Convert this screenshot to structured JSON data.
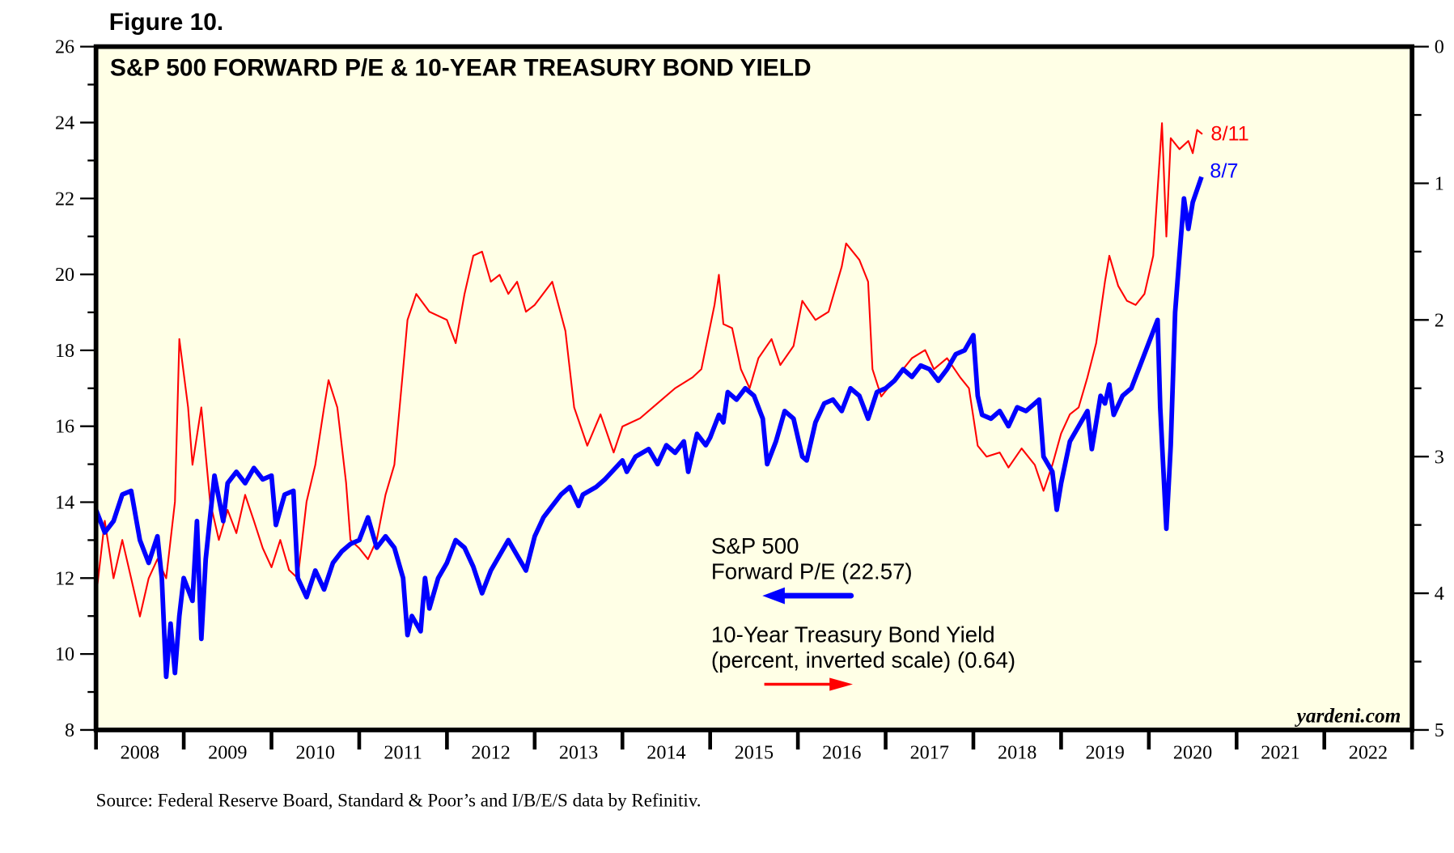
{
  "figure_label": "Figure 10.",
  "source": "Source: Federal Reserve Board, Standard & Poor’s and I/B/E/S data by Refinitiv.",
  "watermark": "yardeni.com",
  "colors": {
    "pe": "#0000ff",
    "yield": "#ff0000",
    "plot_bg": "#ffffe6",
    "frame": "#000000"
  },
  "chart_data": {
    "type": "line",
    "title": "S&P 500 FORWARD P/E & 10-YEAR TREASURY BOND YIELD",
    "xlabel": "",
    "x_tick_labels": [
      "2008",
      "2009",
      "2010",
      "2011",
      "2012",
      "2013",
      "2014",
      "2015",
      "2016",
      "2017",
      "2018",
      "2019",
      "2020",
      "2021",
      "2022"
    ],
    "xlim": [
      2008,
      2023
    ],
    "left_axis": {
      "ylim": [
        8,
        26
      ],
      "tick_labels": [
        "8",
        "10",
        "12",
        "14",
        "16",
        "18",
        "20",
        "22",
        "24",
        "26"
      ],
      "minor_step": 1
    },
    "right_axis": {
      "ylim": [
        5,
        0
      ],
      "inverted": true,
      "tick_labels": [
        "0",
        "1",
        "2",
        "3",
        "4",
        "5"
      ],
      "minor_step": 0.5
    },
    "legend": {
      "pe_line1": "S&P 500",
      "pe_line2": "Forward P/E (22.57)",
      "yield_line1": "10-Year Treasury Bond Yield",
      "yield_line2": "(percent, inverted scale) (0.64)"
    },
    "series": [
      {
        "name": "S&P 500 Forward P/E",
        "axis": "left",
        "end_label": "8/7",
        "points": [
          [
            2008.0,
            13.8
          ],
          [
            2008.1,
            13.2
          ],
          [
            2008.2,
            13.5
          ],
          [
            2008.3,
            14.2
          ],
          [
            2008.4,
            14.3
          ],
          [
            2008.5,
            13.0
          ],
          [
            2008.6,
            12.4
          ],
          [
            2008.7,
            13.1
          ],
          [
            2008.75,
            12.0
          ],
          [
            2008.8,
            9.4
          ],
          [
            2008.85,
            10.8
          ],
          [
            2008.9,
            9.5
          ],
          [
            2008.95,
            11.0
          ],
          [
            2009.0,
            12.0
          ],
          [
            2009.1,
            11.4
          ],
          [
            2009.15,
            13.5
          ],
          [
            2009.2,
            10.4
          ],
          [
            2009.25,
            12.5
          ],
          [
            2009.35,
            14.7
          ],
          [
            2009.45,
            13.5
          ],
          [
            2009.5,
            14.5
          ],
          [
            2009.6,
            14.8
          ],
          [
            2009.7,
            14.5
          ],
          [
            2009.8,
            14.9
          ],
          [
            2009.9,
            14.6
          ],
          [
            2010.0,
            14.7
          ],
          [
            2010.05,
            13.4
          ],
          [
            2010.15,
            14.2
          ],
          [
            2010.25,
            14.3
          ],
          [
            2010.3,
            12.0
          ],
          [
            2010.4,
            11.5
          ],
          [
            2010.5,
            12.2
          ],
          [
            2010.6,
            11.7
          ],
          [
            2010.7,
            12.4
          ],
          [
            2010.8,
            12.7
          ],
          [
            2010.9,
            12.9
          ],
          [
            2011.0,
            13.0
          ],
          [
            2011.1,
            13.6
          ],
          [
            2011.2,
            12.8
          ],
          [
            2011.3,
            13.1
          ],
          [
            2011.4,
            12.8
          ],
          [
            2011.5,
            12.0
          ],
          [
            2011.55,
            10.5
          ],
          [
            2011.6,
            11.0
          ],
          [
            2011.7,
            10.6
          ],
          [
            2011.75,
            12.0
          ],
          [
            2011.8,
            11.2
          ],
          [
            2011.9,
            12.0
          ],
          [
            2012.0,
            12.4
          ],
          [
            2012.1,
            13.0
          ],
          [
            2012.2,
            12.8
          ],
          [
            2012.3,
            12.3
          ],
          [
            2012.4,
            11.6
          ],
          [
            2012.5,
            12.2
          ],
          [
            2012.6,
            12.6
          ],
          [
            2012.7,
            13.0
          ],
          [
            2012.8,
            12.6
          ],
          [
            2012.9,
            12.2
          ],
          [
            2013.0,
            13.1
          ],
          [
            2013.1,
            13.6
          ],
          [
            2013.2,
            13.9
          ],
          [
            2013.3,
            14.2
          ],
          [
            2013.4,
            14.4
          ],
          [
            2013.5,
            13.9
          ],
          [
            2013.55,
            14.2
          ],
          [
            2013.7,
            14.4
          ],
          [
            2013.8,
            14.6
          ],
          [
            2014.0,
            15.1
          ],
          [
            2014.05,
            14.8
          ],
          [
            2014.15,
            15.2
          ],
          [
            2014.3,
            15.4
          ],
          [
            2014.4,
            15.0
          ],
          [
            2014.5,
            15.5
          ],
          [
            2014.6,
            15.3
          ],
          [
            2014.7,
            15.6
          ],
          [
            2014.75,
            14.8
          ],
          [
            2014.85,
            15.8
          ],
          [
            2014.95,
            15.5
          ],
          [
            2015.0,
            15.7
          ],
          [
            2015.1,
            16.3
          ],
          [
            2015.15,
            16.1
          ],
          [
            2015.2,
            16.9
          ],
          [
            2015.3,
            16.7
          ],
          [
            2015.4,
            17.0
          ],
          [
            2015.5,
            16.8
          ],
          [
            2015.6,
            16.2
          ],
          [
            2015.65,
            15.0
          ],
          [
            2015.75,
            15.6
          ],
          [
            2015.85,
            16.4
          ],
          [
            2015.95,
            16.2
          ],
          [
            2016.05,
            15.2
          ],
          [
            2016.1,
            15.1
          ],
          [
            2016.2,
            16.1
          ],
          [
            2016.3,
            16.6
          ],
          [
            2016.4,
            16.7
          ],
          [
            2016.5,
            16.4
          ],
          [
            2016.6,
            17.0
          ],
          [
            2016.7,
            16.8
          ],
          [
            2016.8,
            16.2
          ],
          [
            2016.9,
            16.9
          ],
          [
            2017.0,
            17.0
          ],
          [
            2017.1,
            17.2
          ],
          [
            2017.2,
            17.5
          ],
          [
            2017.3,
            17.3
          ],
          [
            2017.4,
            17.6
          ],
          [
            2017.5,
            17.5
          ],
          [
            2017.6,
            17.2
          ],
          [
            2017.7,
            17.5
          ],
          [
            2017.8,
            17.9
          ],
          [
            2017.9,
            18.0
          ],
          [
            2018.0,
            18.4
          ],
          [
            2018.05,
            16.8
          ],
          [
            2018.1,
            16.3
          ],
          [
            2018.2,
            16.2
          ],
          [
            2018.3,
            16.4
          ],
          [
            2018.4,
            16.0
          ],
          [
            2018.5,
            16.5
          ],
          [
            2018.6,
            16.4
          ],
          [
            2018.7,
            16.6
          ],
          [
            2018.75,
            16.7
          ],
          [
            2018.8,
            15.2
          ],
          [
            2018.9,
            14.8
          ],
          [
            2018.95,
            13.8
          ],
          [
            2019.0,
            14.5
          ],
          [
            2019.1,
            15.6
          ],
          [
            2019.2,
            16.0
          ],
          [
            2019.3,
            16.4
          ],
          [
            2019.35,
            15.4
          ],
          [
            2019.45,
            16.8
          ],
          [
            2019.5,
            16.6
          ],
          [
            2019.55,
            17.1
          ],
          [
            2019.6,
            16.3
          ],
          [
            2019.7,
            16.8
          ],
          [
            2019.8,
            17.0
          ],
          [
            2019.9,
            17.6
          ],
          [
            2020.0,
            18.2
          ],
          [
            2020.1,
            18.8
          ],
          [
            2020.13,
            16.5
          ],
          [
            2020.2,
            13.3
          ],
          [
            2020.25,
            15.5
          ],
          [
            2020.3,
            19.0
          ],
          [
            2020.35,
            20.5
          ],
          [
            2020.4,
            22.0
          ],
          [
            2020.45,
            21.2
          ],
          [
            2020.5,
            21.9
          ],
          [
            2020.6,
            22.57
          ]
        ]
      },
      {
        "name": "10-Year Treasury Bond Yield (percent, inverted scale)",
        "axis": "right",
        "end_label": "8/11",
        "points": [
          [
            2008.0,
            4.03
          ],
          [
            2008.1,
            3.47
          ],
          [
            2008.2,
            3.89
          ],
          [
            2008.3,
            3.61
          ],
          [
            2008.4,
            3.89
          ],
          [
            2008.5,
            4.17
          ],
          [
            2008.6,
            3.89
          ],
          [
            2008.7,
            3.75
          ],
          [
            2008.8,
            3.89
          ],
          [
            2008.9,
            3.33
          ],
          [
            2008.95,
            2.14
          ],
          [
            2009.05,
            2.64
          ],
          [
            2009.1,
            3.06
          ],
          [
            2009.2,
            2.64
          ],
          [
            2009.3,
            3.33
          ],
          [
            2009.4,
            3.61
          ],
          [
            2009.5,
            3.39
          ],
          [
            2009.6,
            3.56
          ],
          [
            2009.7,
            3.28
          ],
          [
            2009.8,
            3.47
          ],
          [
            2009.9,
            3.67
          ],
          [
            2010.0,
            3.81
          ],
          [
            2010.1,
            3.61
          ],
          [
            2010.2,
            3.83
          ],
          [
            2010.3,
            3.89
          ],
          [
            2010.4,
            3.33
          ],
          [
            2010.5,
            3.06
          ],
          [
            2010.6,
            2.64
          ],
          [
            2010.65,
            2.44
          ],
          [
            2010.75,
            2.64
          ],
          [
            2010.85,
            3.19
          ],
          [
            2010.9,
            3.61
          ],
          [
            2011.0,
            3.67
          ],
          [
            2011.1,
            3.75
          ],
          [
            2011.2,
            3.61
          ],
          [
            2011.3,
            3.28
          ],
          [
            2011.4,
            3.06
          ],
          [
            2011.5,
            2.36
          ],
          [
            2011.55,
            2.0
          ],
          [
            2011.65,
            1.81
          ],
          [
            2011.8,
            1.94
          ],
          [
            2012.0,
            2.0
          ],
          [
            2012.1,
            2.17
          ],
          [
            2012.2,
            1.81
          ],
          [
            2012.3,
            1.53
          ],
          [
            2012.4,
            1.5
          ],
          [
            2012.5,
            1.72
          ],
          [
            2012.6,
            1.67
          ],
          [
            2012.7,
            1.81
          ],
          [
            2012.8,
            1.72
          ],
          [
            2012.9,
            1.94
          ],
          [
            2013.0,
            1.89
          ],
          [
            2013.2,
            1.72
          ],
          [
            2013.35,
            2.08
          ],
          [
            2013.45,
            2.64
          ],
          [
            2013.6,
            2.92
          ],
          [
            2013.75,
            2.69
          ],
          [
            2013.9,
            2.97
          ],
          [
            2014.0,
            2.78
          ],
          [
            2014.2,
            2.72
          ],
          [
            2014.4,
            2.61
          ],
          [
            2014.6,
            2.5
          ],
          [
            2014.8,
            2.42
          ],
          [
            2014.9,
            2.36
          ],
          [
            2015.05,
            1.89
          ],
          [
            2015.1,
            1.67
          ],
          [
            2015.15,
            2.03
          ],
          [
            2015.25,
            2.06
          ],
          [
            2015.35,
            2.36
          ],
          [
            2015.45,
            2.5
          ],
          [
            2015.55,
            2.28
          ],
          [
            2015.7,
            2.14
          ],
          [
            2015.8,
            2.33
          ],
          [
            2015.95,
            2.19
          ],
          [
            2016.05,
            1.86
          ],
          [
            2016.2,
            2.0
          ],
          [
            2016.35,
            1.94
          ],
          [
            2016.5,
            1.61
          ],
          [
            2016.55,
            1.44
          ],
          [
            2016.7,
            1.56
          ],
          [
            2016.8,
            1.72
          ],
          [
            2016.85,
            2.36
          ],
          [
            2016.95,
            2.56
          ],
          [
            2017.1,
            2.44
          ],
          [
            2017.3,
            2.28
          ],
          [
            2017.45,
            2.22
          ],
          [
            2017.55,
            2.36
          ],
          [
            2017.7,
            2.28
          ],
          [
            2017.85,
            2.42
          ],
          [
            2017.95,
            2.5
          ],
          [
            2018.05,
            2.92
          ],
          [
            2018.15,
            3.0
          ],
          [
            2018.3,
            2.97
          ],
          [
            2018.4,
            3.08
          ],
          [
            2018.55,
            2.94
          ],
          [
            2018.7,
            3.06
          ],
          [
            2018.8,
            3.25
          ],
          [
            2018.9,
            3.06
          ],
          [
            2019.0,
            2.83
          ],
          [
            2019.1,
            2.69
          ],
          [
            2019.2,
            2.64
          ],
          [
            2019.3,
            2.42
          ],
          [
            2019.4,
            2.17
          ],
          [
            2019.5,
            1.72
          ],
          [
            2019.55,
            1.53
          ],
          [
            2019.65,
            1.75
          ],
          [
            2019.75,
            1.86
          ],
          [
            2019.85,
            1.89
          ],
          [
            2019.95,
            1.81
          ],
          [
            2020.05,
            1.53
          ],
          [
            2020.15,
            0.56
          ],
          [
            2020.2,
            1.39
          ],
          [
            2020.25,
            0.67
          ],
          [
            2020.35,
            0.75
          ],
          [
            2020.45,
            0.69
          ],
          [
            2020.5,
            0.78
          ],
          [
            2020.55,
            0.61
          ],
          [
            2020.61,
            0.64
          ]
        ]
      }
    ]
  }
}
